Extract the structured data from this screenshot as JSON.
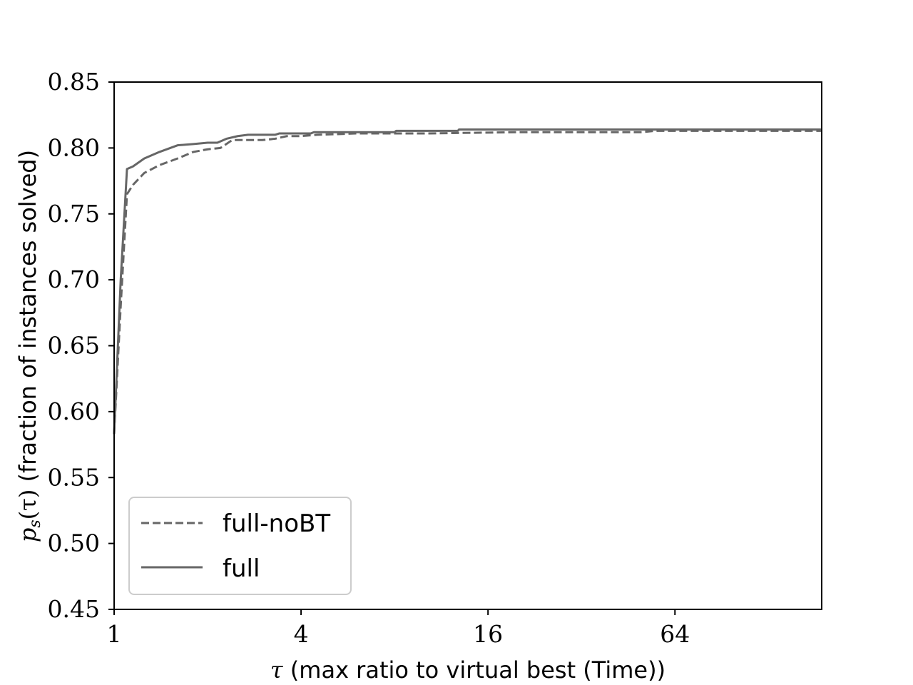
{
  "chart_data": {
    "type": "line",
    "xlabel_symbol": "τ",
    "xlabel_text": " (max ratio to virtual best (Time))",
    "ylabel_symbol": "p",
    "ylabel_subscript": "s",
    "ylabel_arg": "(τ)",
    "ylabel_text": " (fraction of instances solved)",
    "x_scale": "log2",
    "xlim": [
      1,
      190
    ],
    "ylim": [
      0.45,
      0.85
    ],
    "xticks": [
      1,
      4,
      16,
      64
    ],
    "xtick_labels": [
      "1",
      "4",
      "16",
      "64"
    ],
    "yticks": [
      0.45,
      0.5,
      0.55,
      0.6,
      0.65,
      0.7,
      0.75,
      0.8,
      0.85
    ],
    "ytick_labels": [
      "0.45",
      "0.50",
      "0.55",
      "0.60",
      "0.65",
      "0.70",
      "0.75",
      "0.80",
      "0.85"
    ],
    "legend_position": "lower-left",
    "series": [
      {
        "name": "full-noBT",
        "style": "dashed",
        "color": "#666666",
        "points": [
          [
            1.0,
            0.583
          ],
          [
            1.05,
            0.68
          ],
          [
            1.1,
            0.765
          ],
          [
            1.15,
            0.772
          ],
          [
            1.25,
            0.781
          ],
          [
            1.4,
            0.787
          ],
          [
            1.6,
            0.792
          ],
          [
            1.8,
            0.797
          ],
          [
            2.0,
            0.799
          ],
          [
            2.2,
            0.8
          ],
          [
            2.4,
            0.806
          ],
          [
            2.6,
            0.806
          ],
          [
            3.0,
            0.806
          ],
          [
            3.3,
            0.807
          ],
          [
            3.6,
            0.809
          ],
          [
            4.0,
            0.809
          ],
          [
            4.5,
            0.81
          ],
          [
            6.0,
            0.811
          ],
          [
            10.0,
            0.811
          ],
          [
            20.0,
            0.812
          ],
          [
            50.0,
            0.812
          ],
          [
            55.0,
            0.813
          ],
          [
            190.0,
            0.813
          ]
        ]
      },
      {
        "name": "full",
        "style": "solid",
        "color": "#666666",
        "points": [
          [
            1.0,
            0.583
          ],
          [
            1.05,
            0.7
          ],
          [
            1.1,
            0.784
          ],
          [
            1.15,
            0.786
          ],
          [
            1.25,
            0.792
          ],
          [
            1.4,
            0.797
          ],
          [
            1.6,
            0.802
          ],
          [
            1.8,
            0.803
          ],
          [
            2.0,
            0.804
          ],
          [
            2.15,
            0.804
          ],
          [
            2.3,
            0.807
          ],
          [
            2.5,
            0.809
          ],
          [
            2.7,
            0.81
          ],
          [
            3.0,
            0.81
          ],
          [
            3.3,
            0.81
          ],
          [
            3.4,
            0.811
          ],
          [
            4.3,
            0.811
          ],
          [
            4.4,
            0.812
          ],
          [
            8.0,
            0.812
          ],
          [
            8.1,
            0.813
          ],
          [
            12.8,
            0.813
          ],
          [
            12.9,
            0.814
          ],
          [
            190.0,
            0.814
          ]
        ]
      }
    ]
  }
}
